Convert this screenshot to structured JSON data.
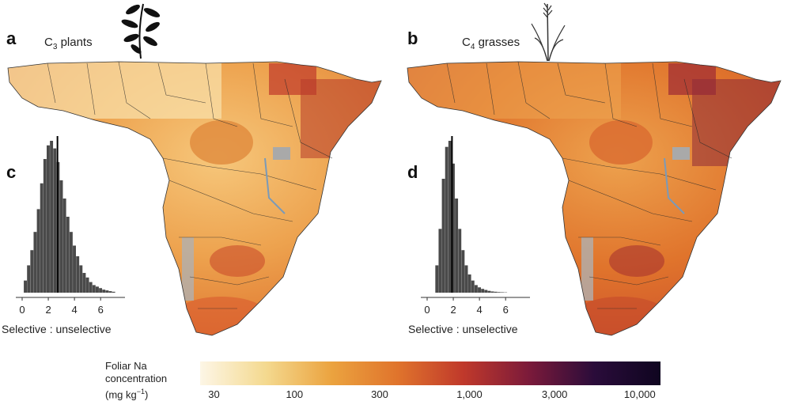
{
  "figure": {
    "panels": [
      {
        "letter": "a",
        "title_prefix": "C",
        "title_sub": "3",
        "title_suffix": " plants",
        "icon": "leafy-plant-icon"
      },
      {
        "letter": "b",
        "title_prefix": "C",
        "title_sub": "4",
        "title_suffix": " grasses",
        "icon": "grass-icon"
      },
      {
        "letter": "c"
      },
      {
        "letter": "d"
      }
    ],
    "histogram_xlabel": "Selective : unselective",
    "colorbar": {
      "label_lines": [
        "Foliar Na",
        "concentration",
        "(mg kg",
        "−1",
        ")"
      ],
      "ticks": [
        "30",
        "100",
        "300",
        "1,000",
        "3,000",
        "10,000"
      ],
      "colors": [
        "#fdf6e6",
        "#f4d98f",
        "#eba33f",
        "#e0742c",
        "#c0392b",
        "#7b1a3a",
        "#2a0c3a",
        "#0f0520"
      ]
    }
  },
  "chart_data": [
    {
      "type": "bar",
      "title": "c",
      "xlabel": "Selective : unselective",
      "xlim": [
        0,
        7.5
      ],
      "xticks": [
        0,
        2,
        4,
        6
      ],
      "median": 2.7,
      "bin_width": 0.25,
      "x": [
        0.25,
        0.5,
        0.75,
        1.0,
        1.25,
        1.5,
        1.75,
        2.0,
        2.25,
        2.5,
        2.75,
        3.0,
        3.25,
        3.5,
        3.75,
        4.0,
        4.25,
        4.5,
        4.75,
        5.0,
        5.25,
        5.5,
        5.75,
        6.0,
        6.25,
        6.5,
        6.75,
        7.0
      ],
      "values": [
        0.08,
        0.18,
        0.28,
        0.4,
        0.55,
        0.72,
        0.88,
        0.97,
        1.0,
        0.95,
        0.86,
        0.74,
        0.62,
        0.5,
        0.4,
        0.31,
        0.24,
        0.18,
        0.13,
        0.1,
        0.07,
        0.05,
        0.04,
        0.03,
        0.02,
        0.015,
        0.01,
        0.006
      ]
    },
    {
      "type": "bar",
      "title": "d",
      "xlabel": "Selective : unselective",
      "xlim": [
        0,
        7.5
      ],
      "xticks": [
        0,
        2,
        4,
        6
      ],
      "median": 1.9,
      "bin_width": 0.25,
      "x": [
        0.75,
        1.0,
        1.25,
        1.5,
        1.75,
        2.0,
        2.25,
        2.5,
        2.75,
        3.0,
        3.25,
        3.5,
        3.75,
        4.0,
        4.25,
        4.5,
        4.75,
        5.0,
        5.25,
        5.5,
        5.75,
        6.0
      ],
      "values": [
        0.18,
        0.42,
        0.75,
        0.96,
        1.0,
        0.85,
        0.62,
        0.42,
        0.28,
        0.18,
        0.12,
        0.08,
        0.05,
        0.035,
        0.025,
        0.018,
        0.012,
        0.008,
        0.006,
        0.004,
        0.003,
        0.002
      ]
    }
  ]
}
